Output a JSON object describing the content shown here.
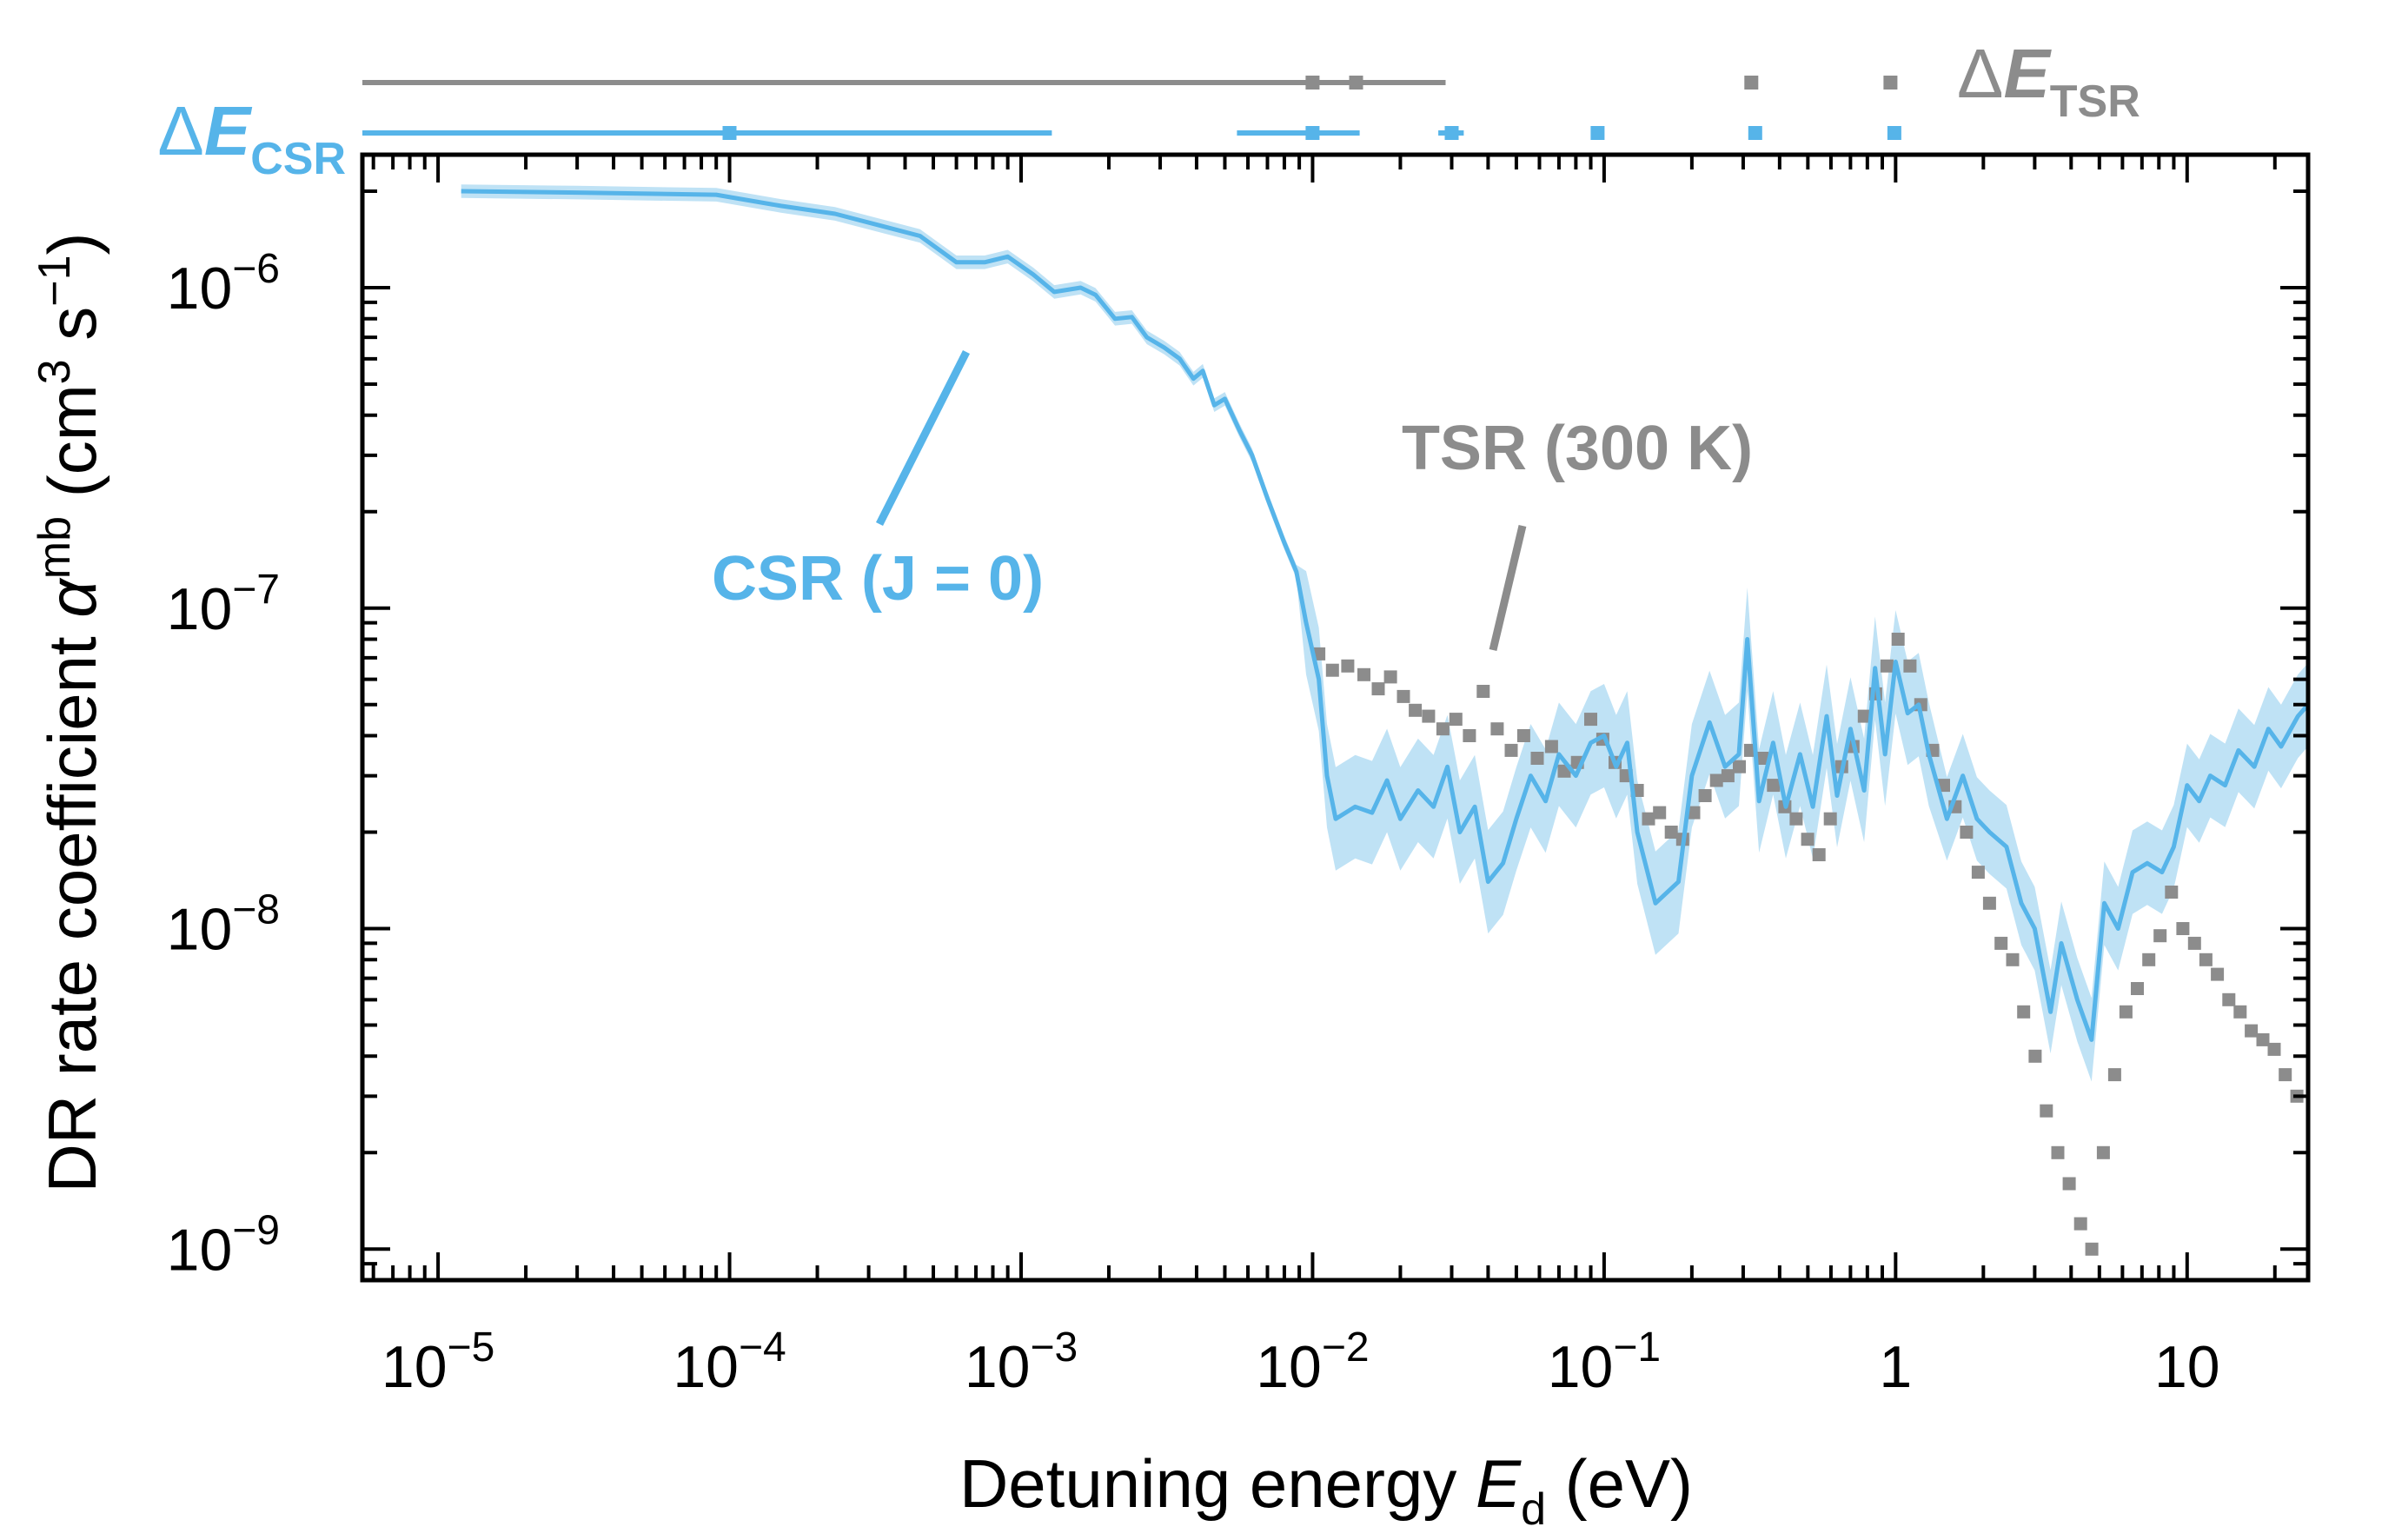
{
  "chart_data": {
    "type": "line",
    "title": "",
    "xlabel": {
      "main": "Detuning energy ",
      "var": "E",
      "sub": "d",
      "unit": " (eV)"
    },
    "ylabel": {
      "main": "DR rate coefficient ",
      "var": "α",
      "sup": "mb",
      "unit_pre": " (cm",
      "unit_sup3": "3",
      "unit_mid": " s",
      "unit_sup": "−1",
      "unit_post": ")"
    },
    "x_scale": "log",
    "y_scale": "log",
    "xlim": [
      5.5e-06,
      26
    ],
    "ylim": [
      8e-10,
      2.6e-06
    ],
    "grid": false,
    "colors": {
      "csr": "#56b4e9",
      "csr_band": "#bfe2f5",
      "tsr": "#8c8c8c",
      "axis": "#000000"
    },
    "x_ticks": [
      {
        "value": 1e-05,
        "base": "10",
        "exp": "−5"
      },
      {
        "value": 0.0001,
        "base": "10",
        "exp": "−4"
      },
      {
        "value": 0.001,
        "base": "10",
        "exp": "−3"
      },
      {
        "value": 0.01,
        "base": "10",
        "exp": "−2"
      },
      {
        "value": 0.1,
        "base": "10",
        "exp": "−1"
      },
      {
        "value": 1,
        "base": "1",
        "exp": ""
      },
      {
        "value": 10,
        "base": "10",
        "exp": ""
      }
    ],
    "y_ticks": [
      {
        "value": 1e-06,
        "base": "10",
        "exp": "−6"
      },
      {
        "value": 1e-07,
        "base": "10",
        "exp": "−7"
      },
      {
        "value": 1e-08,
        "base": "10",
        "exp": "−8"
      },
      {
        "value": 1e-09,
        "base": "10",
        "exp": "−9"
      }
    ],
    "annotations": {
      "csr_label": "CSR (J = 0)",
      "tsr_label": "TSR (300 K)",
      "delta_csr": {
        "delta": "Δ",
        "var": "E",
        "sub": "CSR"
      },
      "delta_tsr": {
        "delta": "Δ",
        "var": "E",
        "sub": "TSR"
      }
    },
    "series": [
      {
        "name": "CSR (J = 0)",
        "style": "line-with-band",
        "points": [
          [
            1.2e-05,
            2e-06
          ],
          [
            3e-05,
            1.98e-06
          ],
          [
            9e-05,
            1.95e-06
          ],
          [
            0.00015,
            1.8e-06
          ],
          [
            0.00023,
            1.7e-06
          ],
          [
            0.00045,
            1.45e-06
          ],
          [
            0.0006,
            1.2e-06
          ],
          [
            0.00075,
            1.2e-06
          ],
          [
            0.0009,
            1.25e-06
          ],
          [
            0.0011,
            1.1e-06
          ],
          [
            0.0013,
            9.7e-07
          ],
          [
            0.0016,
            1e-06
          ],
          [
            0.0018,
            9.5e-07
          ],
          [
            0.0021,
            8e-07
          ],
          [
            0.0024,
            8.1e-07
          ],
          [
            0.0027,
            7e-07
          ],
          [
            0.0031,
            6.5e-07
          ],
          [
            0.0035,
            6e-07
          ],
          [
            0.0039,
            5.2e-07
          ],
          [
            0.0042,
            5.5e-07
          ],
          [
            0.0046,
            4.3e-07
          ],
          [
            0.005,
            4.5e-07
          ],
          [
            0.0056,
            3.6e-07
          ],
          [
            0.0062,
            3e-07
          ],
          [
            0.007,
            2.2e-07
          ],
          [
            0.008,
            1.6e-07
          ],
          [
            0.0088,
            1.3e-07
          ],
          [
            0.0095,
            9e-08
          ],
          [
            0.0105,
            6e-08
          ],
          [
            0.0112,
            3e-08
          ],
          [
            0.012,
            2.2e-08
          ],
          [
            0.014,
            2.4e-08
          ],
          [
            0.016,
            2.3e-08
          ],
          [
            0.018,
            2.9e-08
          ],
          [
            0.02,
            2.2e-08
          ],
          [
            0.023,
            2.7e-08
          ],
          [
            0.026,
            2.4e-08
          ],
          [
            0.029,
            3.2e-08
          ],
          [
            0.032,
            2e-08
          ],
          [
            0.036,
            2.4e-08
          ],
          [
            0.04,
            1.4e-08
          ],
          [
            0.045,
            1.6e-08
          ],
          [
            0.05,
            2.2e-08
          ],
          [
            0.056,
            3e-08
          ],
          [
            0.063,
            2.5e-08
          ],
          [
            0.07,
            3.5e-08
          ],
          [
            0.08,
            3e-08
          ],
          [
            0.09,
            3.8e-08
          ],
          [
            0.1,
            4e-08
          ],
          [
            0.11,
            3.2e-08
          ],
          [
            0.12,
            3.8e-08
          ],
          [
            0.13,
            2e-08
          ],
          [
            0.15,
            1.2e-08
          ],
          [
            0.18,
            1.4e-08
          ],
          [
            0.2,
            3e-08
          ],
          [
            0.23,
            4.4e-08
          ],
          [
            0.26,
            3.2e-08
          ],
          [
            0.29,
            3.5e-08
          ],
          [
            0.31,
            8e-08
          ],
          [
            0.34,
            2.5e-08
          ],
          [
            0.38,
            3.8e-08
          ],
          [
            0.42,
            2.4e-08
          ],
          [
            0.47,
            3.5e-08
          ],
          [
            0.52,
            2.4e-08
          ],
          [
            0.58,
            4.6e-08
          ],
          [
            0.63,
            2.6e-08
          ],
          [
            0.7,
            4.2e-08
          ],
          [
            0.78,
            2.7e-08
          ],
          [
            0.85,
            6.5e-08
          ],
          [
            0.92,
            3.5e-08
          ],
          [
            1.0,
            6.8e-08
          ],
          [
            1.1,
            4.7e-08
          ],
          [
            1.2,
            5e-08
          ],
          [
            1.3,
            3.5e-08
          ],
          [
            1.5,
            2.2e-08
          ],
          [
            1.7,
            3e-08
          ],
          [
            1.9,
            2.2e-08
          ],
          [
            2.1,
            2e-08
          ],
          [
            2.4,
            1.8e-08
          ],
          [
            2.7,
            1.2e-08
          ],
          [
            3.0,
            1e-08
          ],
          [
            3.4,
            5.5e-09
          ],
          [
            3.7,
            9e-09
          ],
          [
            4.2,
            6e-09
          ],
          [
            4.7,
            4.5e-09
          ],
          [
            5.2,
            1.2e-08
          ],
          [
            5.8,
            1e-08
          ],
          [
            6.5,
            1.5e-08
          ],
          [
            7.3,
            1.6e-08
          ],
          [
            8.2,
            1.5e-08
          ],
          [
            9.0,
            1.8e-08
          ],
          [
            10,
            2.8e-08
          ],
          [
            11,
            2.5e-08
          ],
          [
            12,
            3e-08
          ],
          [
            13.5,
            2.8e-08
          ],
          [
            15,
            3.6e-08
          ],
          [
            17,
            3.2e-08
          ],
          [
            19,
            4.2e-08
          ],
          [
            21,
            3.7e-08
          ],
          [
            24,
            4.6e-08
          ],
          [
            26,
            5e-08
          ]
        ]
      },
      {
        "name": "TSR (300 K)",
        "style": "markers",
        "points": [
          [
            0.0105,
            7.2e-08
          ],
          [
            0.0117,
            6.4e-08
          ],
          [
            0.0132,
            6.6e-08
          ],
          [
            0.015,
            6.2e-08
          ],
          [
            0.0168,
            5.6e-08
          ],
          [
            0.0185,
            6.1e-08
          ],
          [
            0.0205,
            5.3e-08
          ],
          [
            0.0225,
            4.8e-08
          ],
          [
            0.025,
            4.6e-08
          ],
          [
            0.028,
            4.2e-08
          ],
          [
            0.031,
            4.5e-08
          ],
          [
            0.0345,
            4e-08
          ],
          [
            0.0385,
            5.5e-08
          ],
          [
            0.043,
            4.2e-08
          ],
          [
            0.048,
            3.6e-08
          ],
          [
            0.053,
            4e-08
          ],
          [
            0.059,
            3.4e-08
          ],
          [
            0.066,
            3.7e-08
          ],
          [
            0.073,
            3.1e-08
          ],
          [
            0.081,
            3.3e-08
          ],
          [
            0.09,
            4.5e-08
          ],
          [
            0.099,
            3.9e-08
          ],
          [
            0.109,
            3.3e-08
          ],
          [
            0.119,
            3e-08
          ],
          [
            0.13,
            2.7e-08
          ],
          [
            0.142,
            2.2e-08
          ],
          [
            0.155,
            2.3e-08
          ],
          [
            0.17,
            2e-08
          ],
          [
            0.186,
            1.9e-08
          ],
          [
            0.203,
            2.3e-08
          ],
          [
            0.222,
            2.6e-08
          ],
          [
            0.243,
            2.9e-08
          ],
          [
            0.266,
            3e-08
          ],
          [
            0.291,
            3.2e-08
          ],
          [
            0.318,
            3.6e-08
          ],
          [
            0.348,
            3.4e-08
          ],
          [
            0.381,
            2.8e-08
          ],
          [
            0.417,
            2.4e-08
          ],
          [
            0.456,
            2.2e-08
          ],
          [
            0.499,
            1.9e-08
          ],
          [
            0.546,
            1.7e-08
          ],
          [
            0.597,
            2.2e-08
          ],
          [
            0.653,
            3.2e-08
          ],
          [
            0.714,
            3.7e-08
          ],
          [
            0.781,
            4.6e-08
          ],
          [
            0.854,
            5.4e-08
          ],
          [
            0.934,
            6.6e-08
          ],
          [
            1.02,
            8e-08
          ],
          [
            1.12,
            6.6e-08
          ],
          [
            1.22,
            5e-08
          ],
          [
            1.34,
            3.6e-08
          ],
          [
            1.46,
            2.8e-08
          ],
          [
            1.6,
            2.4e-08
          ],
          [
            1.75,
            2e-08
          ],
          [
            1.92,
            1.5e-08
          ],
          [
            2.1,
            1.2e-08
          ],
          [
            2.3,
            9e-09
          ],
          [
            2.52,
            8e-09
          ],
          [
            2.75,
            5.5e-09
          ],
          [
            3.01,
            4e-09
          ],
          [
            3.29,
            2.7e-09
          ],
          [
            3.6,
            2e-09
          ],
          [
            3.94,
            1.6e-09
          ],
          [
            4.31,
            1.2e-09
          ],
          [
            4.71,
            1e-09
          ],
          [
            5.16,
            2e-09
          ],
          [
            5.64,
            3.5e-09
          ],
          [
            6.17,
            5.5e-09
          ],
          [
            6.75,
            6.5e-09
          ],
          [
            7.39,
            8e-09
          ],
          [
            8.08,
            9.5e-09
          ],
          [
            8.84,
            1.3e-08
          ],
          [
            9.67,
            1e-08
          ],
          [
            10.6,
            9e-09
          ],
          [
            11.6,
            8e-09
          ],
          [
            12.7,
            7.2e-09
          ],
          [
            13.9,
            6e-09
          ],
          [
            15.2,
            5.5e-09
          ],
          [
            16.6,
            4.8e-09
          ],
          [
            18.2,
            4.5e-09
          ],
          [
            19.9,
            4.2e-09
          ],
          [
            21.7,
            3.5e-09
          ],
          [
            23.8,
            3e-09
          ]
        ]
      }
    ],
    "resolution_bars": {
      "tsr": [
        {
          "center": 0.0141,
          "width": 0.029
        },
        {
          "center": 0.01,
          "width": 0.0035
        },
        {
          "center": 0.32,
          "width": 0.03
        },
        {
          "center": 0.96,
          "width": 0.02
        }
      ],
      "csr": [
        {
          "center": 0.0001,
          "width": 0.00235
        },
        {
          "center": 0.01,
          "width": 0.009
        },
        {
          "center": 0.03,
          "width": 0.006
        },
        {
          "center": 0.095,
          "width": 0.004
        },
        {
          "center": 0.33,
          "width": 0.003
        },
        {
          "center": 0.99,
          "width": 0.003
        }
      ]
    }
  }
}
